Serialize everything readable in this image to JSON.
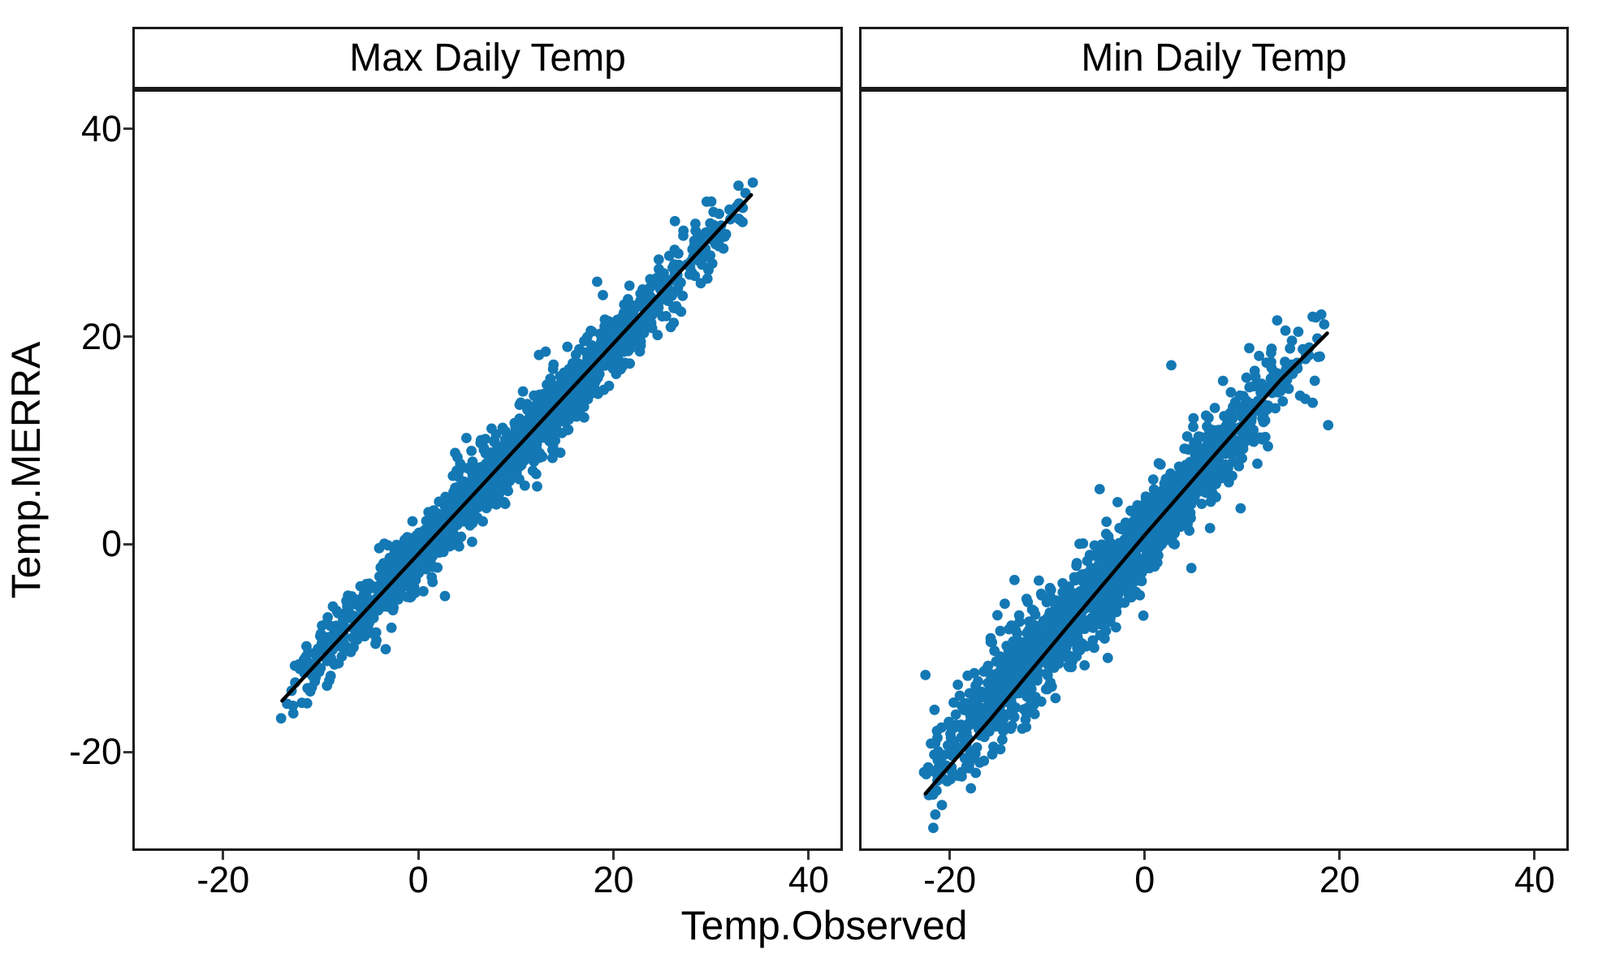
{
  "figure": {
    "background": "#ffffff",
    "border_color": "#1a1a1a",
    "text_color": "#000000",
    "point_color": "#1478b4",
    "line_color": "#000000"
  },
  "chart_data": {
    "type": "scatter",
    "title": "",
    "xlabel": "Temp.Observed",
    "ylabel": "Temp.MERRA",
    "grid": false,
    "legend": "none",
    "shared_axes": true,
    "xlim": [
      -29.3,
      43.5
    ],
    "ylim": [
      -29.5,
      43.8
    ],
    "x_ticks": [
      -20,
      0,
      20,
      40
    ],
    "y_ticks": [
      40,
      20,
      0,
      -20
    ],
    "facets": [
      {
        "title": "Max Daily Temp",
        "seed": 42,
        "cloud": {
          "n": 1500,
          "x_range": [
            -14.6,
            34.6
          ],
          "slope": 1.01,
          "intercept": -1.0,
          "noise_sd": 1.5,
          "wide_tail_frac": 0.08,
          "wide_tail_mult": 1.9
        },
        "extra_lobe": {
          "n": 30,
          "x_range": [
            -13,
            -4
          ],
          "dy_base": 0.8,
          "dy_sd": 1.4,
          "dy_max": 4
        },
        "outliers": [
          [
            -14.2,
            -16.9
          ],
          [
            12.4,
            18.3
          ],
          [
            19.0,
            24.1
          ],
          [
            18.4,
            25.4
          ],
          [
            26.0,
            21.0
          ],
          [
            5.5,
            0.2
          ]
        ],
        "fit_line": [
          [
            -14.1,
            -15.2
          ],
          [
            34.3,
            33.8
          ]
        ]
      },
      {
        "title": "Min Daily Temp",
        "seed": 1337,
        "cloud": {
          "n": 1400,
          "x_range": [
            -23.5,
            19.5
          ],
          "slope": 1.07,
          "intercept": 0.8,
          "noise_sd": 1.9,
          "wide_tail_frac": 0.1,
          "wide_tail_mult": 1.8
        },
        "extra_lobe": {
          "n": 130,
          "x_range": [
            -23,
            -8
          ],
          "dy_base": 0.5,
          "dy_sd": 3.0,
          "dy_max": 9
        },
        "outliers": [
          [
            2.7,
            17.3
          ],
          [
            18.9,
            11.5
          ],
          [
            -22.7,
            -12.7
          ],
          [
            -21.0,
            -25.3
          ],
          [
            -13.5,
            -3.5
          ],
          [
            -4.7,
            5.3
          ],
          [
            -12.7,
            -17.9
          ],
          [
            -17.8,
            -20.8
          ]
        ],
        "fit_line": [
          [
            -22.7,
            -24.2
          ],
          [
            -16.0,
            -17.0
          ],
          [
            -8.0,
            -8.0
          ],
          [
            0.0,
            0.9
          ],
          [
            8.0,
            9.5
          ],
          [
            14.0,
            15.9
          ],
          [
            18.8,
            20.4
          ]
        ]
      }
    ]
  }
}
